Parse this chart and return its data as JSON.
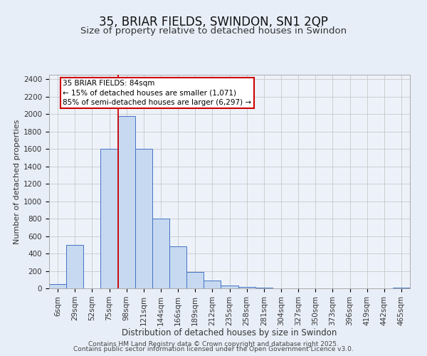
{
  "title": "35, BRIAR FIELDS, SWINDON, SN1 2QP",
  "subtitle": "Size of property relative to detached houses in Swindon",
  "xlabel": "Distribution of detached houses by size in Swindon",
  "ylabel": "Number of detached properties",
  "bar_labels": [
    "6sqm",
    "29sqm",
    "52sqm",
    "75sqm",
    "98sqm",
    "121sqm",
    "144sqm",
    "166sqm",
    "189sqm",
    "212sqm",
    "235sqm",
    "258sqm",
    "281sqm",
    "304sqm",
    "327sqm",
    "350sqm",
    "373sqm",
    "396sqm",
    "419sqm",
    "442sqm",
    "465sqm"
  ],
  "bar_heights": [
    50,
    500,
    0,
    1600,
    1975,
    1600,
    800,
    480,
    190,
    90,
    35,
    20,
    10,
    0,
    0,
    0,
    0,
    0,
    0,
    0,
    10
  ],
  "bar_color": "#c6d9f0",
  "bar_edge_color": "#4472c4",
  "vline_x": 3.5,
  "vline_color": "#cc0000",
  "annotation_line1": "35 BRIAR FIELDS: 84sqm",
  "annotation_line2": "← 15% of detached houses are smaller (1,071)",
  "annotation_line3": "85% of semi-detached houses are larger (6,297) →",
  "annotation_box_color": "#ffffff",
  "annotation_box_edge": "#cc0000",
  "ylim": [
    0,
    2450
  ],
  "yticks": [
    0,
    200,
    400,
    600,
    800,
    1000,
    1200,
    1400,
    1600,
    1800,
    2000,
    2200,
    2400
  ],
  "background_color": "#e8eef8",
  "plot_bg_color": "#edf2fa",
  "footer1": "Contains HM Land Registry data © Crown copyright and database right 2025.",
  "footer2": "Contains public sector information licensed under the Open Government Licence v3.0.",
  "title_fontsize": 12,
  "subtitle_fontsize": 9.5,
  "xlabel_fontsize": 8.5,
  "ylabel_fontsize": 8,
  "tick_fontsize": 7.5,
  "footer_fontsize": 6.5
}
